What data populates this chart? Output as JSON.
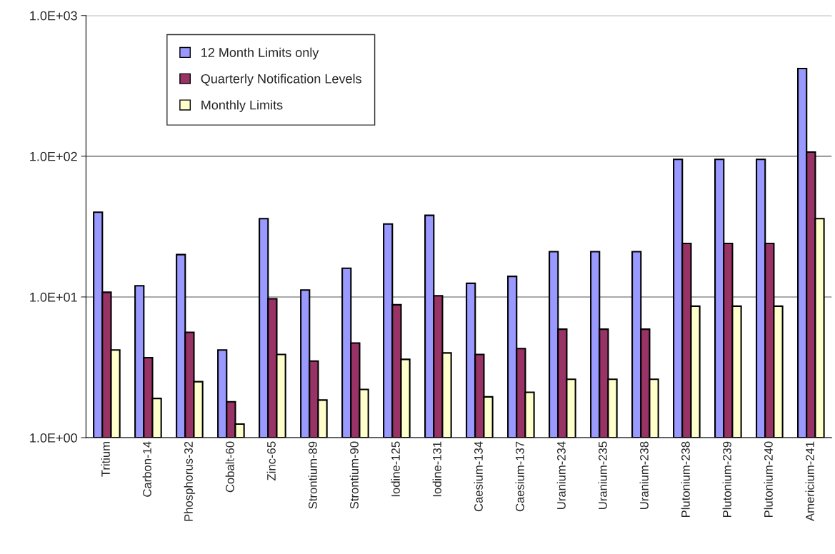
{
  "chart_data": {
    "type": "bar",
    "categories": [
      "Tritium",
      "Carbon-14",
      "Phosphorus-32",
      "Cobalt-60",
      "Zinc-65",
      "Strontium-89",
      "Strontium-90",
      "Iodine-125",
      "Iodine-131",
      "Caesium-134",
      "Caesium-137",
      "Uranium-234",
      "Uranium-235",
      "Uranium-238",
      "Plutonium-238",
      "Plutonium-239",
      "Plutonium-240",
      "Americium-241"
    ],
    "series": [
      {
        "name": "12 Month Limits only",
        "color": "#9999ff",
        "values": [
          40,
          12,
          20,
          4.2,
          36,
          11.2,
          16,
          33,
          38,
          12.5,
          14,
          21,
          21,
          21,
          95,
          95,
          95,
          420
        ]
      },
      {
        "name": "Quarterly Notification Levels",
        "color": "#993366",
        "values": [
          10.8,
          3.7,
          5.6,
          1.8,
          9.7,
          3.5,
          4.7,
          8.8,
          10.2,
          3.9,
          4.3,
          5.9,
          5.9,
          5.9,
          24,
          24,
          24,
          107
        ]
      },
      {
        "name": "Monthly Limits",
        "color": "#ffffcc",
        "values": [
          4.2,
          1.9,
          2.5,
          1.25,
          3.9,
          1.85,
          2.2,
          3.6,
          4.0,
          1.95,
          2.1,
          2.6,
          2.6,
          2.6,
          8.6,
          8.6,
          8.6,
          36
        ]
      }
    ],
    "log": true,
    "ylim": [
      1,
      1000
    ],
    "yticks": [
      {
        "value": 1,
        "label": "1.0E+00"
      },
      {
        "value": 10,
        "label": "1.0E+01"
      },
      {
        "value": 100,
        "label": "1.0E+02"
      },
      {
        "value": 1000,
        "label": "1.0E+03"
      }
    ],
    "grid": "y",
    "legend": "top left"
  }
}
